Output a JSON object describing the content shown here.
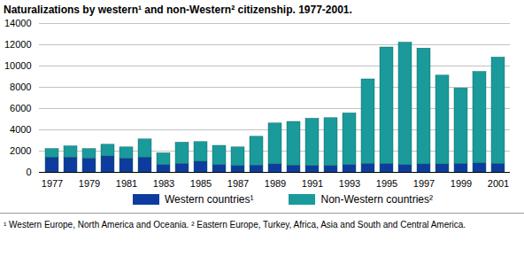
{
  "chart_data": {
    "type": "bar",
    "stacked": true,
    "grid": true,
    "title": "Naturalizations by western¹ and non-Western² citizenship. 1977-2001.",
    "caption": "¹ Western Europe, North America and Oceania.  ² Eastern Europe, Turkey, Africa, Asia and South and Central America.",
    "categories": [
      "1977",
      null,
      "1979",
      null,
      "1981",
      null,
      "1983",
      null,
      "1985",
      null,
      "1987",
      null,
      "1989",
      null,
      "1991",
      null,
      "1993",
      null,
      "1995",
      null,
      "1997",
      null,
      "1999",
      null,
      "2001"
    ],
    "series": [
      {
        "name": "Western countries¹",
        "color": "#0e3c9e",
        "values": [
          1400,
          1400,
          1300,
          1500,
          1300,
          1400,
          700,
          800,
          1000,
          700,
          600,
          650,
          750,
          650,
          600,
          600,
          700,
          800,
          800,
          700,
          750,
          750,
          800,
          850,
          800
        ]
      },
      {
        "name": "Non-Western countries²",
        "color": "#1a9a9a",
        "values": [
          800,
          1050,
          900,
          1100,
          1050,
          1700,
          1100,
          2000,
          1850,
          1800,
          1750,
          2700,
          3850,
          4100,
          4450,
          4500,
          4850,
          7950,
          10950,
          11500,
          10900,
          8350,
          7100,
          8600,
          10000
        ]
      }
    ],
    "ylim": [
      0,
      14000
    ],
    "yticks": [
      0,
      2000,
      4000,
      6000,
      8000,
      10000,
      12000,
      14000
    ],
    "legend": "bottom"
  }
}
